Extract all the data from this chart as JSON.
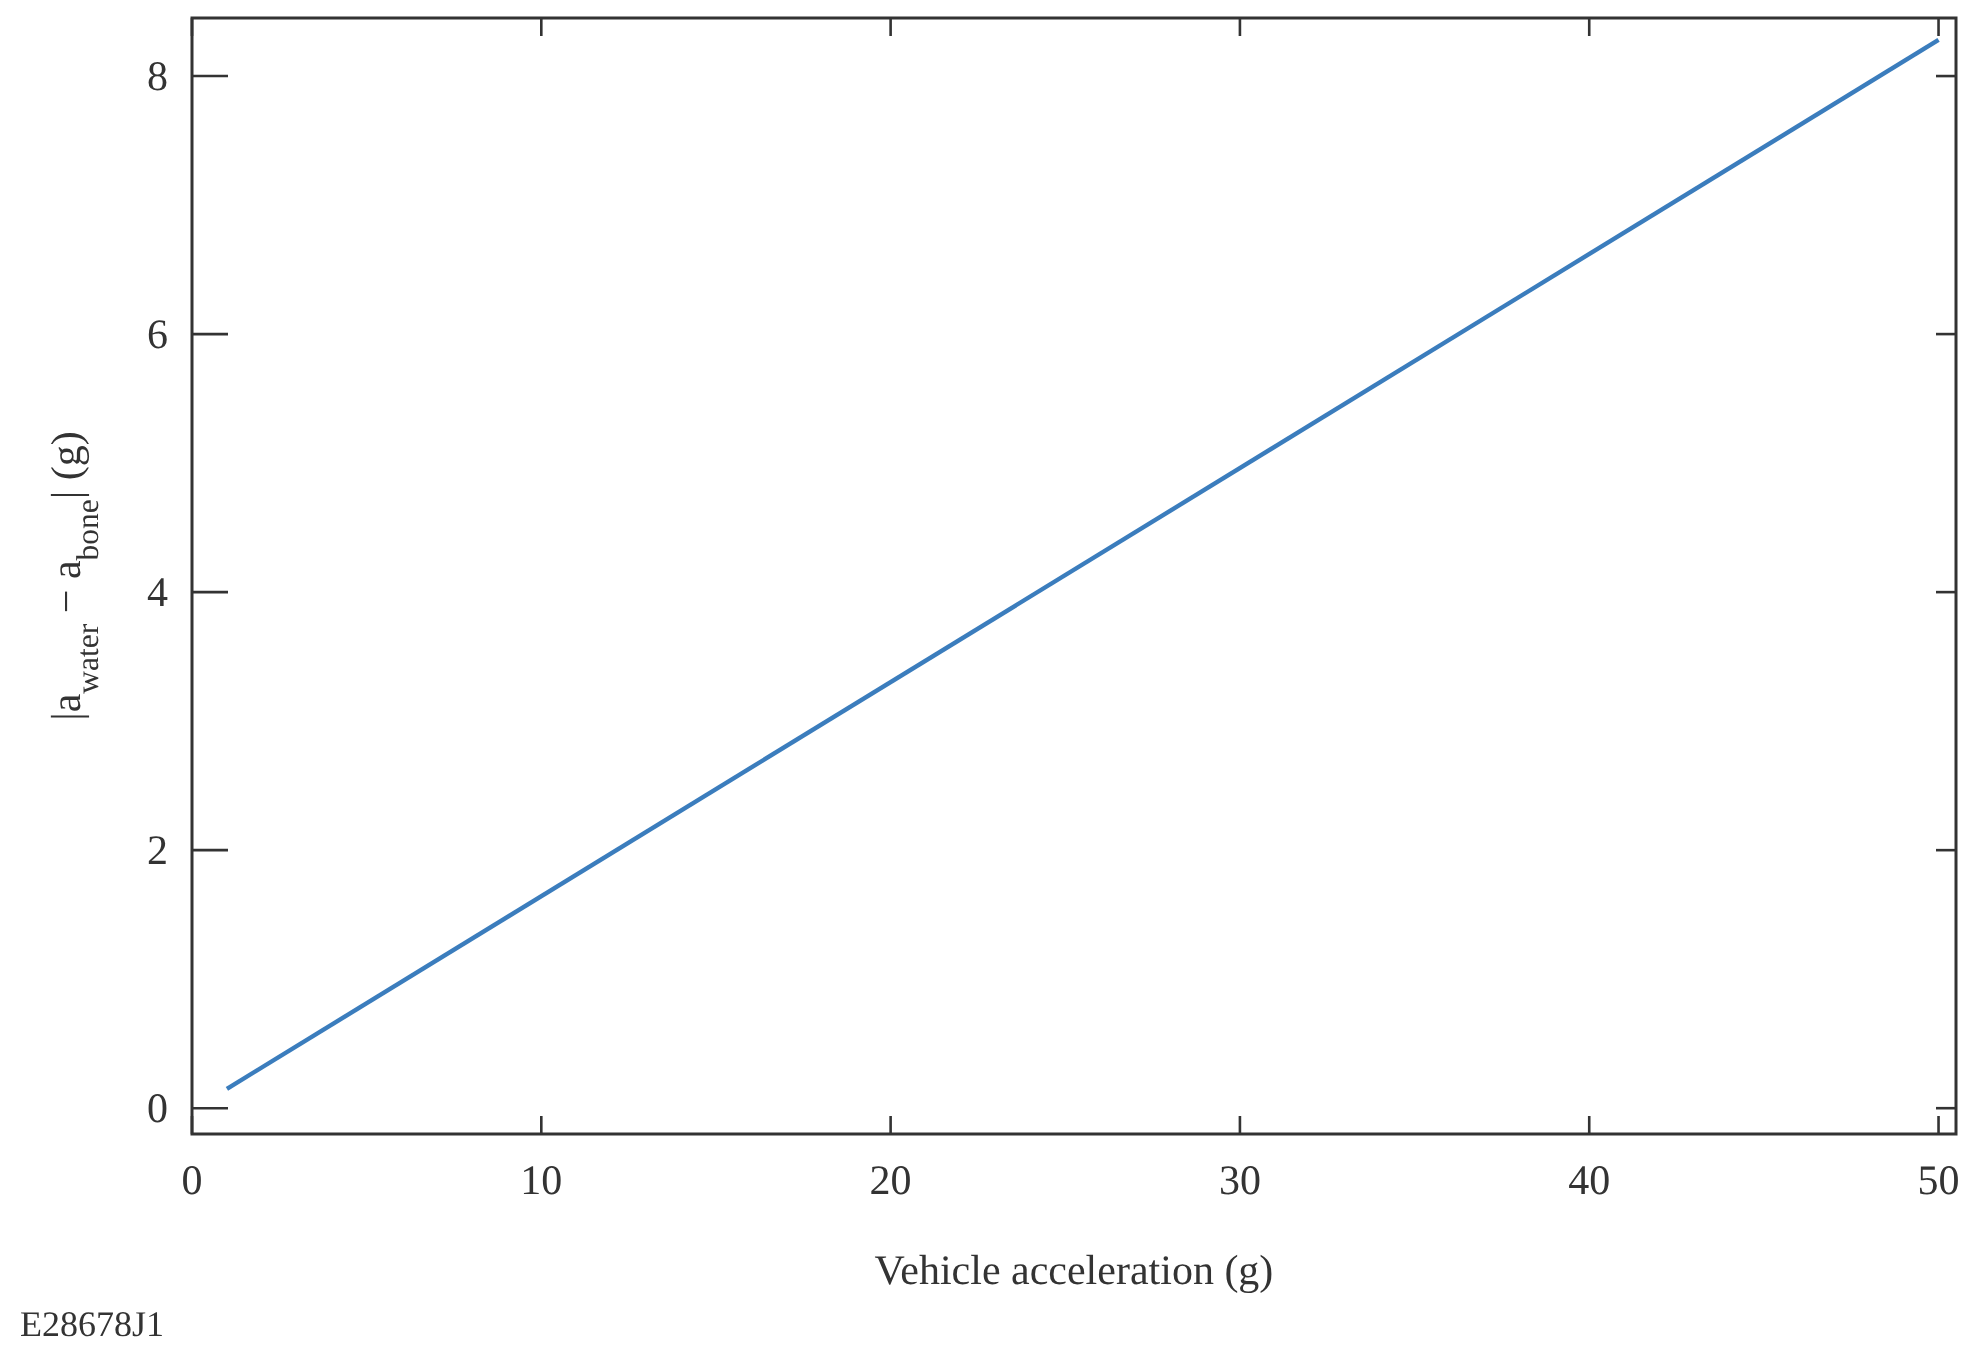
{
  "chart_data": {
    "type": "line",
    "xlabel": "Vehicle acceleration (g)",
    "ylabel": "|a$_{water}$ − a$_{bone}$| (g)",
    "annotations": [
      "E28678J1"
    ],
    "x": [
      1,
      50
    ],
    "series": [
      {
        "color": "#3b7dbd",
        "values": [
          0.15,
          8.28
        ]
      }
    ],
    "xlim": [
      0,
      50.5
    ],
    "xticks": [
      0,
      10,
      20,
      30,
      40,
      50
    ],
    "ylim": [
      -0.2,
      8.45
    ],
    "yticks": [
      0,
      2,
      4,
      6,
      8
    ],
    "grid": false
  }
}
